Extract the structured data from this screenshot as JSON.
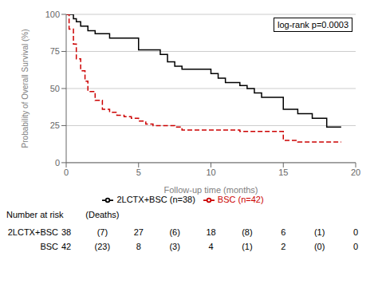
{
  "chart_data": {
    "type": "step",
    "xlabel": "Follow-up time (months)",
    "ylabel": "Probability of Overall Survival (%)",
    "xlim": [
      0,
      20
    ],
    "ylim": [
      0,
      100
    ],
    "xticks": [
      0,
      5,
      10,
      15,
      20
    ],
    "yticks": [
      0,
      25,
      50,
      75,
      100
    ],
    "grid": "y",
    "legend": "bottom",
    "annotations": [
      "log-rank p=0.0003"
    ],
    "series": [
      {
        "name": "2LCTX+BSC (n=38)",
        "color": "#000000",
        "line_style": "solid",
        "x": [
          0,
          0.5,
          0.7,
          1.0,
          1.5,
          2.0,
          2.5,
          3.0,
          3.5,
          4.0,
          5.0,
          6.0,
          6.5,
          7.0,
          7.5,
          8.0,
          8.5,
          9.0,
          9.5,
          10.0,
          10.5,
          11.0,
          11.5,
          12.0,
          12.5,
          13.0,
          13.5,
          14.0,
          15.0,
          16.0,
          17.0,
          18.0,
          19.0
        ],
        "values": [
          100,
          97,
          95,
          92,
          89,
          87,
          87,
          84,
          84,
          84,
          76,
          76,
          73,
          68,
          65,
          63,
          63,
          63,
          63,
          60,
          57,
          54,
          54,
          52,
          50,
          47,
          44,
          44,
          36,
          33,
          30,
          24,
          24
        ]
      },
      {
        "name": "BSC (n=42)",
        "color": "#cc0000",
        "line_style": "dashed",
        "x": [
          0,
          0.2,
          0.5,
          0.7,
          1.0,
          1.3,
          1.5,
          2.0,
          2.5,
          3.0,
          3.5,
          4.0,
          4.5,
          5.0,
          5.5,
          6.0,
          6.5,
          7.0,
          7.5,
          8.0,
          9.0,
          10.0,
          11.0,
          12.0,
          13.0,
          14.0,
          15.0,
          16.0,
          17.0,
          18.0,
          19.0
        ],
        "values": [
          100,
          90,
          80,
          70,
          62,
          55,
          48,
          42,
          36,
          34,
          32,
          31,
          30,
          28,
          26,
          25,
          25,
          25,
          24,
          22,
          22,
          22,
          22,
          21,
          21,
          21,
          15,
          14,
          14,
          14,
          14
        ]
      }
    ],
    "risk_table": {
      "header": "Number at risk",
      "header_deaths": "(Deaths)",
      "header_deaths_x": 2.5,
      "x": [
        0,
        2.5,
        5,
        7.5,
        10,
        12.5,
        15,
        17.5,
        20
      ],
      "rows": [
        {
          "name": "2LCTX+BSC",
          "values": [
            "38",
            "(7)",
            "27",
            "(6)",
            "18",
            "(8)",
            "6",
            "(1)",
            "0"
          ]
        },
        {
          "name": "BSC",
          "values": [
            "42",
            "(23)",
            "8",
            "(3)",
            "4",
            "(1)",
            "2",
            "(0)",
            "0"
          ]
        }
      ]
    }
  }
}
